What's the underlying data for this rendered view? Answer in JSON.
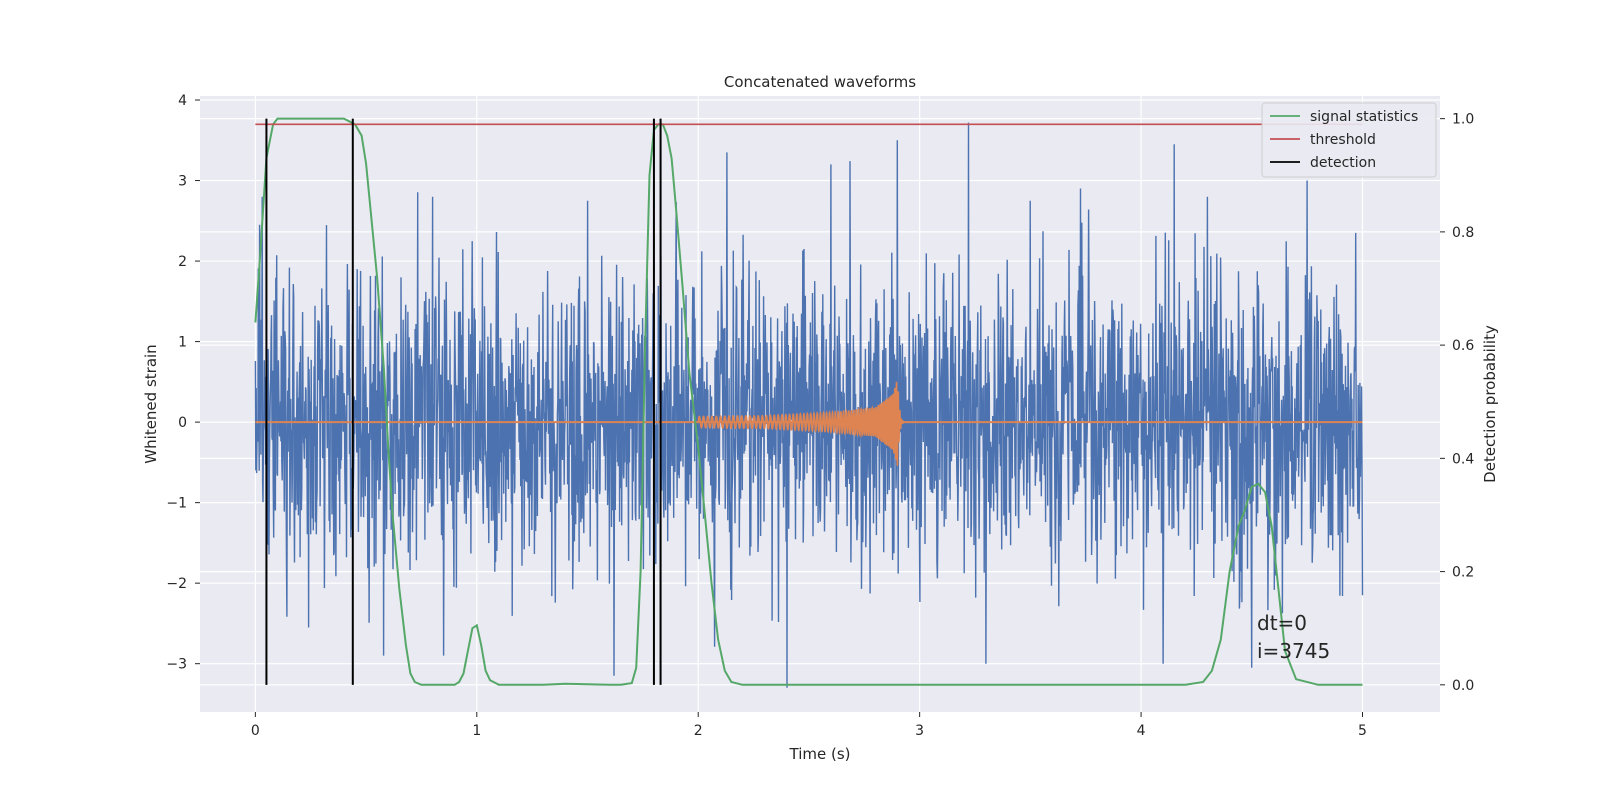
{
  "chart_data": {
    "type": "line",
    "title": "Concatenated waveforms",
    "xlabel": "Time (s)",
    "ylabel": "Whitened strain",
    "ylabel_right": "Detection probability",
    "xlim": [
      -0.25,
      5.35
    ],
    "ylim": [
      -3.6,
      4.05
    ],
    "ylim_right": [
      -0.048,
      1.04
    ],
    "xticks": [
      0,
      1,
      2,
      3,
      4,
      5
    ],
    "yticks": [
      -3,
      -2,
      -1,
      0,
      1,
      2,
      3,
      4
    ],
    "yticks_right": [
      0.0,
      0.2,
      0.4,
      0.6,
      0.8,
      1.0
    ],
    "grid": true,
    "legend_position": "top-right",
    "colors": {
      "background": "#eaeaf2",
      "grid": "#ffffff",
      "strain": "#4c72b0",
      "injection": "#dd8452",
      "signal_statistics": "#55a868",
      "threshold": "#c44e52",
      "detection": "#000000"
    },
    "series": [
      {
        "name": "signal statistics",
        "axis": "right",
        "x": [
          0.0,
          0.02,
          0.05,
          0.08,
          0.1,
          0.15,
          0.2,
          0.25,
          0.3,
          0.35,
          0.4,
          0.45,
          0.48,
          0.5,
          0.52,
          0.55,
          0.58,
          0.6,
          0.62,
          0.65,
          0.68,
          0.7,
          0.72,
          0.75,
          0.8,
          0.85,
          0.9,
          0.92,
          0.94,
          0.96,
          0.98,
          1.0,
          1.02,
          1.04,
          1.06,
          1.1,
          1.2,
          1.3,
          1.4,
          1.5,
          1.6,
          1.65,
          1.7,
          1.72,
          1.74,
          1.76,
          1.78,
          1.8,
          1.82,
          1.84,
          1.86,
          1.88,
          1.9,
          1.93,
          1.96,
          2.0,
          2.03,
          2.06,
          2.09,
          2.12,
          2.15,
          2.2,
          2.5,
          3.0,
          3.5,
          4.0,
          4.2,
          4.28,
          4.32,
          4.36,
          4.4,
          4.44,
          4.47,
          4.5,
          4.53,
          4.56,
          4.59,
          4.62,
          4.65,
          4.7,
          4.8,
          5.0
        ],
        "values": [
          0.64,
          0.75,
          0.93,
          0.99,
          1.0,
          1.0,
          1.0,
          1.0,
          1.0,
          1.0,
          1.0,
          0.99,
          0.97,
          0.92,
          0.84,
          0.72,
          0.56,
          0.42,
          0.3,
          0.17,
          0.07,
          0.02,
          0.005,
          0.0,
          0.0,
          0.0,
          0.0,
          0.005,
          0.02,
          0.06,
          0.1,
          0.105,
          0.07,
          0.025,
          0.008,
          0.0,
          0.0,
          0.0,
          0.002,
          0.001,
          0.0,
          0.0,
          0.003,
          0.03,
          0.2,
          0.6,
          0.9,
          0.98,
          0.99,
          0.99,
          0.97,
          0.93,
          0.84,
          0.7,
          0.55,
          0.42,
          0.3,
          0.18,
          0.08,
          0.025,
          0.005,
          0.0,
          0.0,
          0.0,
          0.0,
          0.0,
          0.0,
          0.005,
          0.025,
          0.08,
          0.2,
          0.28,
          0.31,
          0.35,
          0.355,
          0.34,
          0.28,
          0.17,
          0.06,
          0.01,
          0.0,
          0.0
        ]
      },
      {
        "name": "threshold",
        "axis": "right",
        "x": [
          0.0,
          5.0
        ],
        "values": [
          0.99,
          0.99
        ]
      },
      {
        "name": "detection",
        "axis": "right",
        "x": [
          0.05,
          0.44,
          1.8,
          1.83
        ],
        "values": [
          1.0,
          1.0,
          1.0,
          1.0
        ]
      },
      {
        "axis": "left",
        "x": [
          0.0,
          5.0
        ],
        "values": [
          0.0,
          0.0
        ],
        "amplitude_envelope_stddev": 0.9,
        "peak_spikes": [
          {
            "x": 0.02,
            "y": 2.45
          },
          {
            "x": 0.03,
            "y": 2.8
          },
          {
            "x": 0.05,
            "y": -2.3
          },
          {
            "x": 0.24,
            "y": -2.55
          },
          {
            "x": 0.46,
            "y": 1.9
          },
          {
            "x": 0.58,
            "y": -2.9
          },
          {
            "x": 0.8,
            "y": 2.8
          },
          {
            "x": 0.85,
            "y": -2.9
          },
          {
            "x": 1.5,
            "y": 2.75
          },
          {
            "x": 1.62,
            "y": -3.15
          },
          {
            "x": 1.83,
            "y": -3.05
          },
          {
            "x": 2.13,
            "y": 3.35
          },
          {
            "x": 2.4,
            "y": -3.35
          },
          {
            "x": 2.6,
            "y": 3.2
          },
          {
            "x": 2.9,
            "y": 3.5
          },
          {
            "x": 3.22,
            "y": 3.72
          },
          {
            "x": 3.3,
            "y": -3.0
          },
          {
            "x": 3.5,
            "y": 2.75
          },
          {
            "x": 4.1,
            "y": -3.0
          },
          {
            "x": 4.15,
            "y": 3.45
          },
          {
            "x": 4.3,
            "y": 2.8
          },
          {
            "x": 4.5,
            "y": -3.05
          },
          {
            "x": 4.75,
            "y": 3.0
          },
          {
            "x": 4.97,
            "y": 2.35
          },
          {
            "x": 5.0,
            "y": -2.15
          }
        ]
      },
      {
        "axis": "left",
        "x": [
          2.0,
          2.3,
          2.6,
          2.8,
          2.88,
          2.9,
          2.92,
          5.0
        ],
        "envelope": [
          0.07,
          0.08,
          0.12,
          0.18,
          0.35,
          0.55,
          0.05,
          0.0
        ]
      }
    ],
    "annotations": [
      "dt=0",
      "i=3745"
    ]
  }
}
